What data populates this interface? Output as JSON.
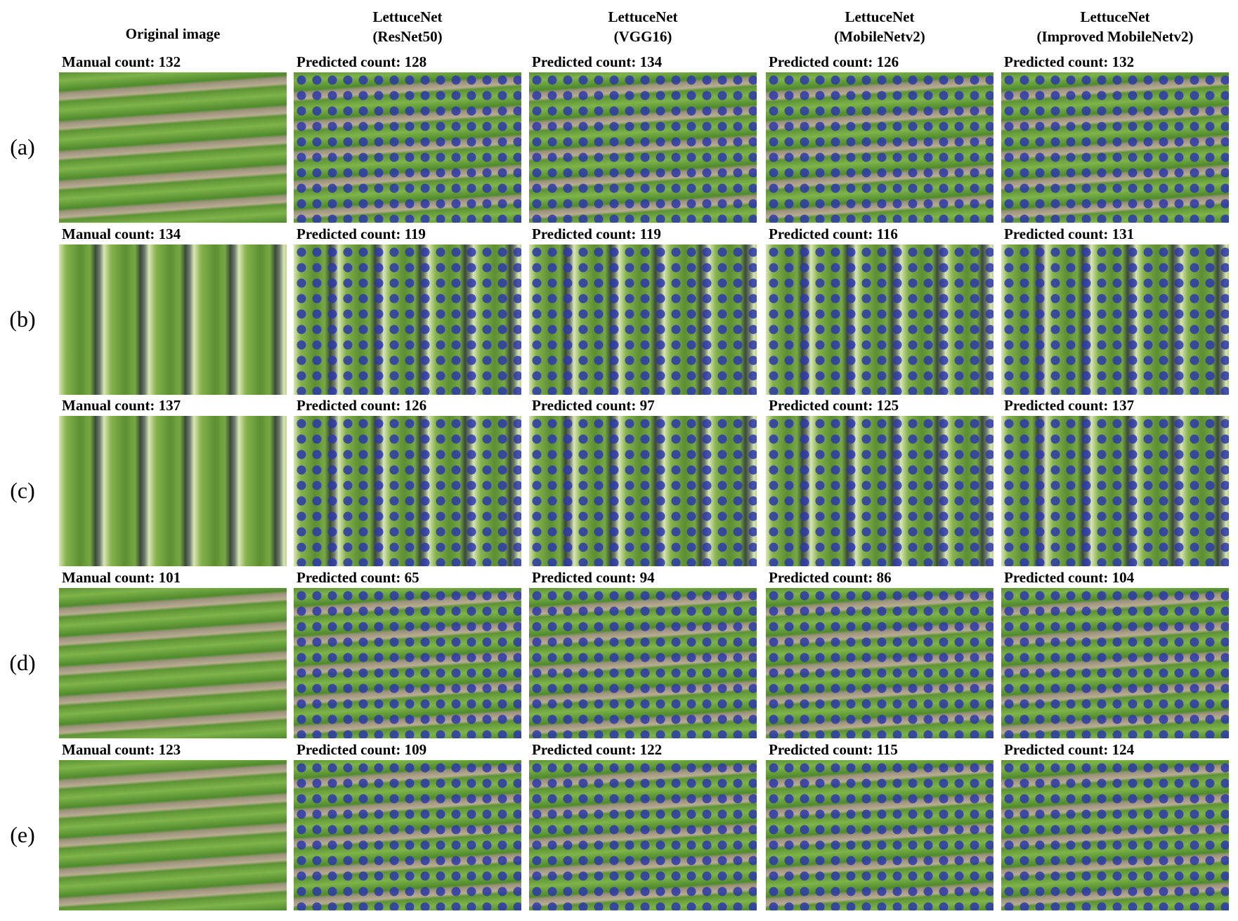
{
  "columns": [
    {
      "lines": [
        "Original image"
      ]
    },
    {
      "lines": [
        "LettuceNet",
        "(ResNet50)"
      ]
    },
    {
      "lines": [
        "LettuceNet",
        "(VGG16)"
      ]
    },
    {
      "lines": [
        "LettuceNet",
        "(MobileNetv2)"
      ]
    },
    {
      "lines": [
        "LettuceNet",
        "(Improved MobileNetv2)"
      ]
    }
  ],
  "rows": [
    {
      "label": "(a)",
      "counts": [
        "Manual count: 132",
        "Predicted count: 128",
        "Predicted count: 134",
        "Predicted count: 126",
        "Predicted count: 132"
      ]
    },
    {
      "label": "(b)",
      "counts": [
        "Manual count: 134",
        "Predicted count: 119",
        "Predicted count: 119",
        "Predicted count: 116",
        "Predicted count: 131"
      ]
    },
    {
      "label": "(c)",
      "counts": [
        "Manual count: 137",
        "Predicted count: 126",
        "Predicted count: 97",
        "Predicted count: 125",
        "Predicted count: 137"
      ]
    },
    {
      "label": "(d)",
      "counts": [
        "Manual count: 101",
        "Predicted count: 65",
        "Predicted count: 94",
        "Predicted count: 86",
        "Predicted count: 104"
      ]
    },
    {
      "label": "(e)",
      "counts": [
        "Manual count: 123",
        "Predicted count: 109",
        "Predicted count: 122",
        "Predicted count: 115",
        "Predicted count: 124"
      ]
    }
  ]
}
